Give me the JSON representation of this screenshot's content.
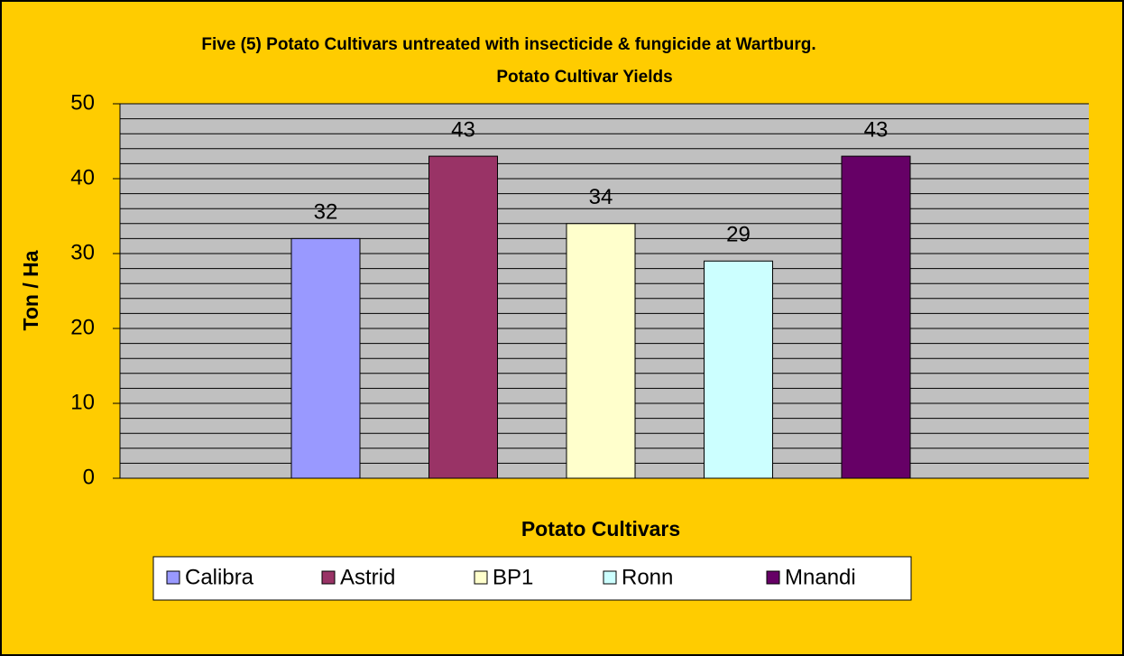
{
  "chart_data": {
    "type": "bar",
    "title": "Five (5) Potato Cultivars untreated with insecticide & fungicide at Wartburg.",
    "subtitle": "Potato Cultivar Yields",
    "x_label": "Potato Cultivars",
    "y_label": "Ton / Ha",
    "categories": [
      null
    ],
    "series": [
      {
        "name": "Calibra",
        "color": "#9999FF",
        "values": [
          32
        ]
      },
      {
        "name": "Astrid",
        "color": "#993366",
        "values": [
          43
        ]
      },
      {
        "name": "BP1",
        "color": "#FFFFCC",
        "values": [
          34
        ]
      },
      {
        "name": "Ronn",
        "color": "#CCFFFF",
        "values": [
          29
        ]
      },
      {
        "name": "Mnandi",
        "color": "#660066",
        "values": [
          43
        ]
      }
    ],
    "ylim": [
      0,
      50
    ],
    "yticks": [
      0,
      10,
      20,
      30,
      40,
      50
    ],
    "grid": true,
    "minor_grid_step": 2,
    "legend": "bottom"
  }
}
